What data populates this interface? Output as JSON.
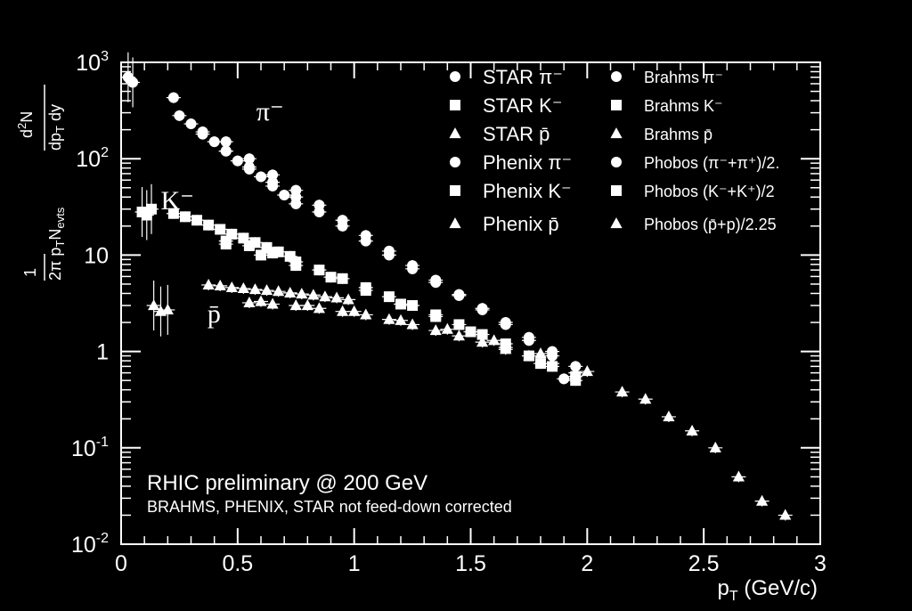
{
  "chart_data": {
    "type": "scatter",
    "title": "",
    "xlabel": "p_T (GeV/c)",
    "ylabel": "1/(2π p_T N_evts) d²N/(dp_T dy)",
    "xlim": [
      0,
      3
    ],
    "ylim": [
      0.01,
      1000
    ],
    "yscale": "log",
    "x_ticks": [
      "0",
      "0.5",
      "1",
      "1.5",
      "2",
      "2.5",
      "3"
    ],
    "y_ticks": [
      {
        "base": "10",
        "exp": "-2"
      },
      {
        "base": "10",
        "exp": "-1"
      },
      {
        "base": "1",
        "exp": ""
      },
      {
        "base": "10",
        "exp": ""
      },
      {
        "base": "10",
        "exp": "2"
      },
      {
        "base": "10",
        "exp": "3"
      }
    ],
    "legend_position": "top-right",
    "annotations": [
      {
        "text": "π⁻",
        "x": 0.58,
        "y": 250
      },
      {
        "text": "K⁻",
        "x": 0.17,
        "y": 30
      },
      {
        "text": "p̄",
        "x": 0.37,
        "y": 2.0
      }
    ],
    "notes": [
      "RHIC preliminary @ 200 GeV",
      "BRAHMS, PHENIX, STAR not feed-down corrected"
    ],
    "series": [
      {
        "name": "STAR π⁻",
        "marker": "circle",
        "x": [
          0.225,
          0.25,
          0.3,
          0.35,
          0.4,
          0.45,
          0.5,
          0.55,
          0.6,
          0.65,
          0.7,
          0.75
        ],
        "y": [
          430,
          280,
          230,
          190,
          150,
          120,
          95,
          78,
          65,
          52,
          42,
          34
        ]
      },
      {
        "name": "STAR K⁻",
        "marker": "square",
        "x": [
          0.225,
          0.275,
          0.325,
          0.375,
          0.425,
          0.475,
          0.525,
          0.575,
          0.625,
          0.675,
          0.725
        ],
        "y": [
          27,
          25,
          23,
          20.5,
          18.5,
          16.5,
          15,
          13.5,
          12,
          10.8,
          9.7
        ]
      },
      {
        "name": "STAR p̄",
        "marker": "triangle",
        "x": [
          0.375,
          0.425,
          0.475,
          0.525,
          0.575,
          0.625,
          0.675,
          0.725,
          0.775,
          0.825,
          0.875,
          0.925,
          0.975
        ],
        "y": [
          4.9,
          4.8,
          4.6,
          4.5,
          4.4,
          4.3,
          4.2,
          4.05,
          3.95,
          3.85,
          3.7,
          3.6,
          3.45
        ]
      },
      {
        "name": "Phenix π⁻",
        "marker": "circle",
        "x": [
          0.35,
          0.45,
          0.55,
          0.65,
          0.75,
          0.85,
          0.95,
          1.05,
          1.15,
          1.25,
          1.35,
          1.45,
          1.55,
          1.65,
          1.75,
          1.85,
          1.95
        ],
        "y": [
          180,
          120,
          82,
          57,
          40,
          28,
          20,
          14,
          10,
          7.2,
          5.2,
          3.8,
          2.8,
          2.0,
          1.4,
          1.0,
          0.7
        ]
      },
      {
        "name": "Phenix K⁻",
        "marker": "square",
        "x": [
          0.45,
          0.55,
          0.65,
          0.75,
          0.85,
          0.95,
          1.05,
          1.15,
          1.25,
          1.35,
          1.45,
          1.55,
          1.65,
          1.75,
          1.85,
          1.95
        ],
        "y": [
          14,
          12.5,
          10.5,
          8.5,
          7,
          5.7,
          4.6,
          3.7,
          3.0,
          2.4,
          1.9,
          1.5,
          1.2,
          0.9,
          0.7,
          0.55
        ]
      },
      {
        "name": "Phenix p̄",
        "marker": "triangle",
        "x": [
          0.55,
          0.65,
          0.75,
          0.85,
          0.95,
          1.05,
          1.15,
          1.25,
          1.35,
          1.45,
          1.55,
          1.65,
          1.75,
          1.85,
          1.95
        ],
        "y": [
          3.2,
          3.1,
          3.0,
          2.8,
          2.6,
          2.4,
          2.15,
          1.9,
          1.65,
          1.45,
          1.25,
          1.05,
          0.9,
          0.75,
          0.6
        ]
      },
      {
        "name": "Brahms π⁻",
        "marker": "circle",
        "x": [
          0.45,
          0.55,
          0.65,
          0.75,
          0.85,
          0.95,
          1.05,
          1.15,
          1.25,
          1.35,
          1.45,
          1.55,
          1.65,
          1.75,
          1.85,
          1.9
        ],
        "y": [
          150,
          100,
          68,
          47,
          33,
          23,
          16,
          11,
          7.8,
          5.5,
          3.9,
          2.7,
          1.9,
          1.3,
          0.9,
          0.52
        ]
      },
      {
        "name": "Brahms K⁻",
        "marker": "square",
        "x": [
          0.45,
          0.6,
          0.75,
          0.9,
          1.05,
          1.2,
          1.35,
          1.5,
          1.65,
          1.8,
          1.95
        ],
        "y": [
          13,
          10,
          7.8,
          5.9,
          4.3,
          3.1,
          2.3,
          1.6,
          1.1,
          0.75,
          0.5
        ]
      },
      {
        "name": "Brahms p̄",
        "marker": "triangle",
        "x": [
          0.6,
          0.8,
          1.0,
          1.2,
          1.4,
          1.6,
          1.8,
          2.0,
          2.15,
          2.25,
          2.35,
          2.45,
          2.55,
          2.65,
          2.75,
          2.85
        ],
        "y": [
          3.3,
          3.0,
          2.6,
          2.1,
          1.7,
          1.3,
          0.95,
          0.62,
          0.38,
          0.32,
          0.21,
          0.15,
          0.1,
          0.05,
          0.028,
          0.02
        ]
      },
      {
        "name": "Phobos (π⁻+π⁺)/2.",
        "marker": "circle",
        "x": [
          0.03,
          0.05
        ],
        "y": [
          700,
          620
        ]
      },
      {
        "name": "Phobos (K⁻+K⁺)/2",
        "marker": "square",
        "x": [
          0.09,
          0.11,
          0.13
        ],
        "y": [
          28,
          26,
          30
        ]
      },
      {
        "name": "Phobos (p̄+p)/2.25",
        "marker": "triangle",
        "x": [
          0.14,
          0.17,
          0.2
        ],
        "y": [
          3.0,
          2.6,
          2.7
        ]
      }
    ]
  }
}
